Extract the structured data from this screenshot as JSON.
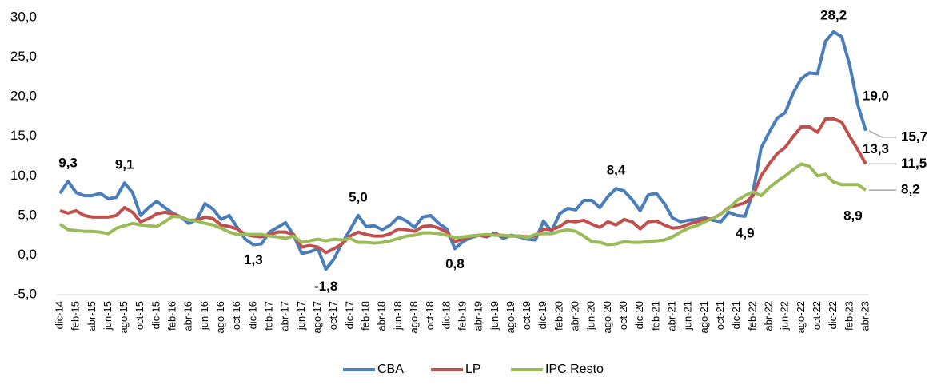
{
  "chart_data": {
    "type": "line",
    "categories": [
      "dic-14",
      null,
      "feb-15",
      null,
      "abr-15",
      null,
      "jun-15",
      null,
      "ago-15",
      null,
      "oct-15",
      null,
      "dic-15",
      null,
      "feb-16",
      null,
      "abr-16",
      null,
      "jun-16",
      null,
      "ago-16",
      null,
      "oct-16",
      null,
      "dic-16",
      null,
      "feb-17",
      null,
      "abr-17",
      null,
      "jun-17",
      null,
      "ago-17",
      null,
      "oct-17",
      null,
      "dic-17",
      null,
      "feb-18",
      null,
      "abr-18",
      null,
      "jun-18",
      null,
      "ago-18",
      null,
      "oct-18",
      null,
      "dic-18",
      null,
      "feb-19",
      null,
      "abr-19",
      null,
      "jun-19",
      null,
      "ago-19",
      null,
      "oct-19",
      null,
      "dic-19",
      null,
      "feb-20",
      null,
      "abr-20",
      null,
      "jun-20",
      null,
      "ago-20",
      null,
      "oct-20",
      null,
      "dic-20",
      null,
      "feb-21",
      null,
      "abr-21",
      null,
      "jun-21",
      null,
      "ago-21",
      null,
      "oct-21",
      null,
      "dic-21",
      null,
      "feb-22",
      null,
      "abr-22",
      null,
      "jun-22",
      null,
      "ago-22",
      null,
      "oct-22",
      null,
      "dic-22",
      null,
      "feb-23",
      null,
      "abr-23"
    ],
    "series": [
      {
        "name": "CBA",
        "color": "#4a7ebb",
        "values": [
          7.8,
          9.3,
          7.9,
          7.5,
          7.5,
          7.8,
          7.1,
          7.3,
          9.1,
          7.9,
          5.0,
          6.0,
          6.8,
          6.0,
          5.3,
          4.8,
          4.0,
          4.5,
          6.5,
          5.8,
          4.5,
          5.0,
          3.5,
          2.0,
          1.3,
          1.4,
          2.9,
          3.5,
          4.1,
          2.5,
          0.2,
          0.4,
          0.8,
          -1.8,
          -0.5,
          1.5,
          3.2,
          5.0,
          3.6,
          3.7,
          3.2,
          3.8,
          4.8,
          4.3,
          3.5,
          4.8,
          5.0,
          4.0,
          3.3,
          0.8,
          1.7,
          2.2,
          2.5,
          2.3,
          2.8,
          2.1,
          2.5,
          2.3,
          2.0,
          1.9,
          4.3,
          3.0,
          5.2,
          5.9,
          5.7,
          6.9,
          6.9,
          6.0,
          7.4,
          8.4,
          8.1,
          7.0,
          5.6,
          7.6,
          7.8,
          6.5,
          4.7,
          4.2,
          4.4,
          4.5,
          4.7,
          4.4,
          4.2,
          5.4,
          5.0,
          4.9,
          8.0,
          13.5,
          15.5,
          17.3,
          18.0,
          20.5,
          22.3,
          23.0,
          22.9,
          27.0,
          28.2,
          27.6,
          24.0,
          19.0,
          15.7
        ],
        "value_labels": [
          null,
          "9,3",
          null,
          null,
          null,
          null,
          null,
          null,
          "9,1",
          null,
          null,
          null,
          null,
          null,
          null,
          null,
          null,
          null,
          null,
          null,
          null,
          null,
          null,
          null,
          "1,3",
          null,
          null,
          null,
          null,
          null,
          null,
          null,
          null,
          "-1,8",
          null,
          null,
          null,
          "5,0",
          null,
          null,
          null,
          null,
          null,
          null,
          null,
          null,
          null,
          null,
          null,
          "0,8",
          null,
          null,
          null,
          null,
          null,
          null,
          null,
          null,
          null,
          null,
          null,
          null,
          null,
          null,
          null,
          null,
          null,
          null,
          null,
          "8,4",
          null,
          null,
          null,
          null,
          null,
          null,
          null,
          null,
          null,
          null,
          null,
          null,
          null,
          null,
          null,
          "4,9",
          null,
          null,
          null,
          null,
          null,
          null,
          null,
          null,
          null,
          null,
          "28,2",
          null,
          null,
          "19,0",
          "15,7"
        ]
      },
      {
        "name": "LP",
        "color": "#c0504d",
        "values": [
          5.6,
          5.3,
          5.6,
          5.0,
          4.8,
          4.8,
          4.8,
          5.0,
          6.0,
          5.4,
          4.2,
          4.6,
          5.2,
          5.4,
          5.2,
          4.8,
          4.4,
          4.4,
          4.8,
          4.6,
          3.8,
          3.6,
          3.3,
          2.6,
          2.4,
          2.3,
          2.6,
          2.9,
          2.9,
          2.6,
          1.0,
          1.2,
          1.0,
          0.3,
          0.8,
          1.4,
          2.4,
          2.9,
          2.6,
          2.4,
          2.4,
          2.7,
          3.3,
          3.2,
          3.0,
          3.6,
          3.7,
          3.4,
          2.9,
          1.7,
          2.0,
          2.4,
          2.5,
          2.4,
          2.7,
          2.4,
          2.4,
          2.4,
          2.3,
          2.4,
          3.3,
          3.2,
          3.6,
          4.3,
          4.2,
          4.4,
          3.9,
          3.5,
          4.2,
          3.8,
          4.5,
          4.2,
          3.3,
          4.2,
          4.3,
          3.8,
          3.4,
          3.5,
          3.9,
          4.2,
          4.5,
          4.6,
          5.2,
          6.0,
          6.3,
          6.6,
          7.5,
          10.0,
          11.5,
          12.8,
          13.6,
          15.0,
          16.2,
          16.2,
          15.5,
          17.2,
          17.2,
          16.8,
          15.0,
          13.3,
          11.5
        ],
        "value_labels": [
          null,
          null,
          null,
          null,
          null,
          null,
          null,
          null,
          null,
          null,
          null,
          null,
          null,
          null,
          null,
          null,
          null,
          null,
          null,
          null,
          null,
          null,
          null,
          null,
          null,
          null,
          null,
          null,
          null,
          null,
          null,
          null,
          null,
          null,
          null,
          null,
          null,
          null,
          null,
          null,
          null,
          null,
          null,
          null,
          null,
          null,
          null,
          null,
          null,
          null,
          null,
          null,
          null,
          null,
          null,
          null,
          null,
          null,
          null,
          null,
          null,
          null,
          null,
          null,
          null,
          null,
          null,
          null,
          null,
          null,
          null,
          null,
          null,
          null,
          null,
          null,
          null,
          null,
          null,
          null,
          null,
          null,
          null,
          null,
          null,
          null,
          null,
          null,
          null,
          null,
          null,
          null,
          null,
          null,
          null,
          null,
          null,
          null,
          null,
          "13,3",
          "11,5"
        ]
      },
      {
        "name": "IPC Resto",
        "color": "#9bbb59",
        "values": [
          3.9,
          3.2,
          3.1,
          3.0,
          3.0,
          2.9,
          2.7,
          3.4,
          3.7,
          4.0,
          3.8,
          3.7,
          3.6,
          4.2,
          4.9,
          4.8,
          4.4,
          4.3,
          4.0,
          3.8,
          3.4,
          2.9,
          2.6,
          2.6,
          2.6,
          2.6,
          2.4,
          2.3,
          2.1,
          2.4,
          1.6,
          1.8,
          2.0,
          1.8,
          2.0,
          1.9,
          2.1,
          1.6,
          1.6,
          1.5,
          1.6,
          1.8,
          2.1,
          2.4,
          2.5,
          2.8,
          2.8,
          2.7,
          2.5,
          2.2,
          2.3,
          2.4,
          2.5,
          2.6,
          2.5,
          2.5,
          2.4,
          2.4,
          2.2,
          2.6,
          2.7,
          2.7,
          3.0,
          3.2,
          3.0,
          2.4,
          1.7,
          1.6,
          1.3,
          1.4,
          1.7,
          1.6,
          1.6,
          1.7,
          1.8,
          1.9,
          2.3,
          2.9,
          3.4,
          3.7,
          4.2,
          4.6,
          5.2,
          5.9,
          6.9,
          7.5,
          8.0,
          7.5,
          8.5,
          9.3,
          10.0,
          10.8,
          11.5,
          11.2,
          10.0,
          10.2,
          9.2,
          8.9,
          8.9,
          8.9,
          8.2
        ],
        "value_labels": [
          null,
          null,
          null,
          null,
          null,
          null,
          null,
          null,
          null,
          null,
          null,
          null,
          null,
          null,
          null,
          null,
          null,
          null,
          null,
          null,
          null,
          null,
          null,
          null,
          null,
          null,
          null,
          null,
          null,
          null,
          null,
          null,
          null,
          null,
          null,
          null,
          null,
          null,
          null,
          null,
          null,
          null,
          null,
          null,
          null,
          null,
          null,
          null,
          null,
          null,
          null,
          null,
          null,
          null,
          null,
          null,
          null,
          null,
          null,
          null,
          null,
          null,
          null,
          null,
          null,
          null,
          null,
          null,
          null,
          null,
          null,
          null,
          null,
          null,
          null,
          null,
          null,
          null,
          null,
          null,
          null,
          null,
          null,
          null,
          null,
          null,
          null,
          null,
          null,
          null,
          null,
          null,
          null,
          null,
          null,
          null,
          null,
          null,
          null,
          "8,9",
          "8,2"
        ]
      }
    ],
    "ylim": [
      -5,
      30
    ],
    "yticks": [
      {
        "value": -5,
        "label": "-5,0"
      },
      {
        "value": 0,
        "label": "0,0"
      },
      {
        "value": 5,
        "label": "5,0"
      },
      {
        "value": 10,
        "label": "10,0"
      },
      {
        "value": 15,
        "label": "15,0"
      },
      {
        "value": 20,
        "label": "20,0"
      },
      {
        "value": 25,
        "label": "25,0"
      },
      {
        "value": 30,
        "label": "30,0"
      }
    ],
    "grid": false,
    "legend": "bottom"
  }
}
